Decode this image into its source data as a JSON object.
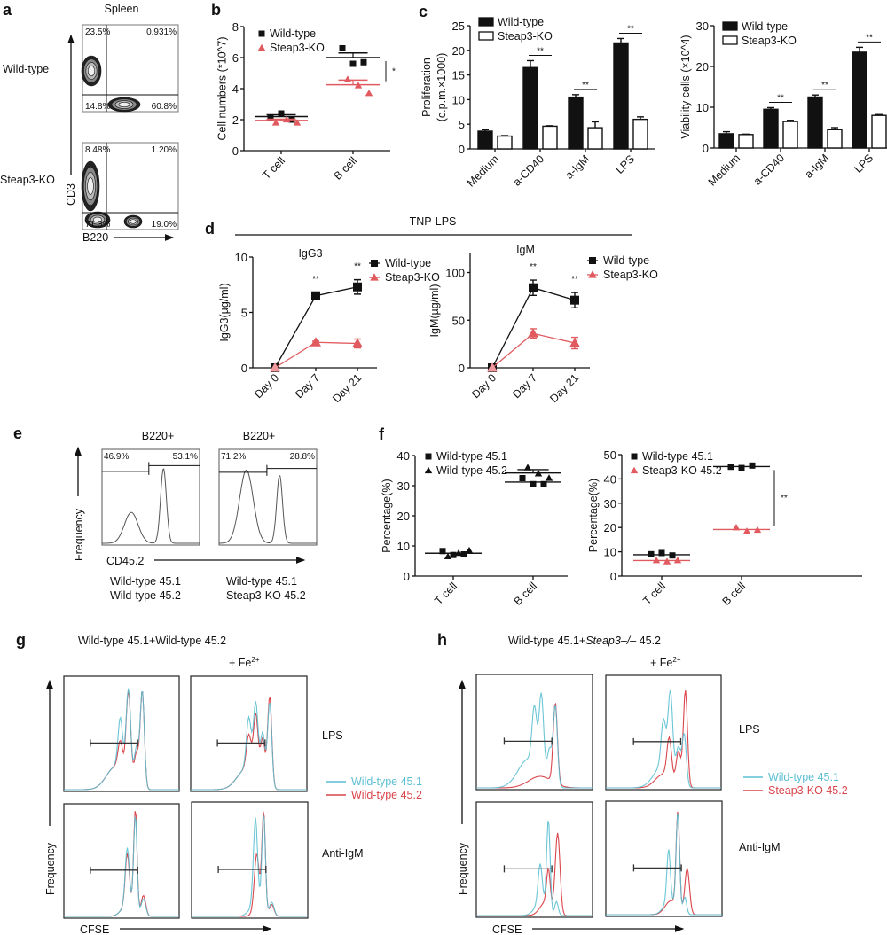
{
  "panels": {
    "a": {
      "label": "a",
      "title": "Spleen",
      "row_labels": [
        "Wild-type",
        "Steap3-KO"
      ],
      "y_axis": "CD3",
      "x_axis": "B220",
      "quadrants": [
        [
          "23.5%",
          "0.931%",
          "14.8%",
          "60.8%"
        ],
        [
          "8.48%",
          "1.20%",
          "71.3%",
          "19.0%"
        ]
      ]
    },
    "b": {
      "label": "b"
    },
    "c": {
      "label": "c"
    },
    "d": {
      "label": "d",
      "group_title": "TNP-LPS"
    },
    "e": {
      "label": "e",
      "titles": [
        "B220+",
        "B220+"
      ],
      "y_axis": "Frequency",
      "x_axis": "CD45.2",
      "gates": [
        [
          "46.9%",
          "53.1%"
        ],
        [
          "71.2%",
          "28.8%"
        ]
      ],
      "captions": [
        [
          "Wild-type 45.1",
          "Wild-type 45.2"
        ],
        [
          "Wild-type  45.1",
          "Steap3-KO 45.2"
        ]
      ]
    },
    "f": {
      "label": "f"
    },
    "g": {
      "label": "g",
      "title": "Wild-type 45.1+Wild-type 45.2",
      "fe_label": "+ Fe",
      "fe_sup": "2+",
      "rows": [
        "LPS",
        "Anti-IgM"
      ],
      "legend": [
        "Wild-type 45.1",
        "Wild-type 45.2"
      ],
      "y_axis": "Frequency",
      "x_axis": "CFSE"
    },
    "h": {
      "label": "h",
      "title_prefix": "Wild-type 45.1+",
      "title_italic": "Steap3–/–",
      "title_suffix": " 45.2",
      "fe_label": "+ Fe",
      "fe_sup": "2+",
      "rows": [
        "LPS",
        "Anti-IgM"
      ],
      "legend": [
        "Wild-type 45.1",
        "Steap3-KO 45.2"
      ],
      "y_axis": "Frequency",
      "x_axis": "CFSE"
    }
  },
  "colors": {
    "wild_type": "#111111",
    "steap3_ko": "#e05a5f",
    "hist_wt": "#5bbfd2",
    "hist_ko": "#d9464c",
    "hist_gray": "#555555"
  },
  "chart_data": [
    {
      "id": "b",
      "type": "scatter",
      "ylabel": "Cell numbers (*10^7)",
      "ylim": [
        0,
        8
      ],
      "yticks": [
        0,
        2,
        4,
        6,
        8
      ],
      "categories": [
        "T cell",
        "B cell"
      ],
      "legend_position": "top-left",
      "series": [
        {
          "name": "Wild-type",
          "marker": "square",
          "points": [
            [
              2.1,
              2.4,
              2.0
            ],
            [
              6.6,
              5.6,
              5.7
            ]
          ],
          "mean": [
            2.2,
            6.0
          ],
          "sem": [
            0.12,
            0.3
          ]
        },
        {
          "name": "Steap3-KO",
          "marker": "triangle",
          "points": [
            [
              1.8,
              2.0,
              1.8
            ],
            [
              4.6,
              4.2,
              3.7
            ]
          ],
          "mean": [
            1.95,
            4.25
          ],
          "sem": [
            0.08,
            0.3
          ]
        }
      ],
      "significance": [
        {
          "between": "B cell",
          "label": "*"
        }
      ]
    },
    {
      "id": "c1",
      "type": "bar",
      "ylabel": "Proliferation\n(c.p.m.×1000)",
      "ylabel_lines": [
        "Proliferation",
        "(c.p.m.×1000)"
      ],
      "ylim": [
        0,
        25
      ],
      "yticks": [
        0,
        5,
        10,
        15,
        20,
        25
      ],
      "categories": [
        "Medium",
        "a-CD40",
        "a-IgM",
        "LPS"
      ],
      "legend_position": "top-left",
      "series": [
        {
          "name": "Wild-type",
          "fill": "black",
          "values": [
            3.6,
            16.5,
            10.5,
            21.5
          ],
          "err": [
            0.3,
            1.4,
            0.5,
            0.9
          ]
        },
        {
          "name": "Steap3-KO",
          "fill": "white",
          "values": [
            2.6,
            4.6,
            4.3,
            6.0
          ],
          "err": [
            0.1,
            0.1,
            1.2,
            0.5
          ]
        }
      ],
      "significance": [
        {
          "category": "a-CD40",
          "label": "**"
        },
        {
          "category": "a-IgM",
          "label": "**"
        },
        {
          "category": "LPS",
          "label": "**"
        }
      ]
    },
    {
      "id": "c2",
      "type": "bar",
      "ylabel": "Viability cells (×10^4)",
      "ylabel_lines": [
        "Viability cells (×10^4)"
      ],
      "ylim": [
        0,
        30
      ],
      "yticks": [
        0,
        10,
        20,
        30
      ],
      "categories": [
        "Medium",
        "a-CD40",
        "a-IgM",
        "LPS"
      ],
      "legend_position": "top-left",
      "series": [
        {
          "name": "Wild-type",
          "fill": "black",
          "values": [
            3.5,
            9.5,
            12.5,
            23.5
          ],
          "err": [
            0.5,
            0.4,
            0.5,
            1.2
          ]
        },
        {
          "name": "Steap3-KO",
          "fill": "white",
          "values": [
            3.3,
            6.5,
            4.5,
            8.0
          ],
          "err": [
            0.1,
            0.3,
            0.5,
            0.2
          ]
        }
      ],
      "significance": [
        {
          "category": "a-CD40",
          "label": "**"
        },
        {
          "category": "a-IgM",
          "label": "**"
        },
        {
          "category": "LPS",
          "label": "**"
        }
      ]
    },
    {
      "id": "d1",
      "type": "line",
      "title": "IgG3",
      "ylabel": "IgG3(µg/ml)",
      "ylim": [
        0,
        10
      ],
      "yticks": [
        0,
        5,
        10
      ],
      "categories": [
        "Day 0",
        "Day 7",
        "Day 21"
      ],
      "legend_position": "right",
      "series": [
        {
          "name": "Wild-type",
          "marker": "square",
          "values": [
            0,
            6.5,
            7.3
          ],
          "err": [
            0,
            0.3,
            0.65
          ]
        },
        {
          "name": "Steap3-KO",
          "marker": "triangle",
          "values": [
            0,
            2.3,
            2.2
          ],
          "err": [
            0,
            0.1,
            0.4
          ]
        }
      ],
      "significance": [
        {
          "category": "Day 7",
          "label": "**"
        },
        {
          "category": "Day 21",
          "label": "**"
        }
      ]
    },
    {
      "id": "d2",
      "type": "line",
      "title": "IgM",
      "ylabel": "IgM(µg/ml)",
      "ylim": [
        0,
        120
      ],
      "yticks": [
        0,
        50,
        100
      ],
      "categories": [
        "Day 0",
        "Day 7",
        "Day 21"
      ],
      "legend_position": "right",
      "series": [
        {
          "name": "Wild-type",
          "marker": "square",
          "values": [
            0,
            84,
            71
          ],
          "err": [
            0,
            8,
            8
          ]
        },
        {
          "name": "Steap3-KO",
          "marker": "triangle",
          "values": [
            0,
            36,
            26
          ],
          "err": [
            0,
            5,
            6
          ]
        }
      ],
      "significance": [
        {
          "category": "Day 7",
          "label": "**"
        },
        {
          "category": "Day 21",
          "label": "**"
        }
      ]
    },
    {
      "id": "f1",
      "type": "scatter",
      "ylabel": "Percentage(%)",
      "ylim": [
        0,
        40
      ],
      "yticks": [
        0,
        10,
        20,
        30,
        40
      ],
      "categories": [
        "T cell",
        "B cell"
      ],
      "legend_position": "top-left",
      "series": [
        {
          "name": "Wild-type 45.1",
          "marker": "square",
          "points": [
            [
              8.3,
              7.0,
              7.2
            ],
            [
              32.5,
              30.5,
              30.5
            ]
          ],
          "mean": [
            7.6,
            31.2
          ],
          "sem": [
            0,
            0
          ]
        },
        {
          "name": "Wild-type 45.2",
          "marker": "triangle",
          "points": [
            [
              6.5,
              7.6,
              8.5
            ],
            [
              36.0,
              34.0,
              32.5
            ]
          ],
          "mean": [
            7.6,
            34.2
          ],
          "sem": [
            0,
            1.1
          ]
        }
      ]
    },
    {
      "id": "f2",
      "type": "scatter",
      "ylabel": "Percentage(%)",
      "ylim": [
        0,
        50
      ],
      "yticks": [
        0,
        10,
        20,
        30,
        40,
        50
      ],
      "categories": [
        "T cell",
        "B cell"
      ],
      "legend_position": "top-left",
      "series": [
        {
          "name": "Wild-type 45.1",
          "marker": "square",
          "points": [
            [
              9.0,
              9.5,
              8.5
            ],
            [
              45.0,
              44.5,
              45.5
            ]
          ],
          "mean": [
            8.8,
            45.1
          ],
          "sem": [
            0,
            0
          ]
        },
        {
          "name": "Steap3-KO 45.2",
          "marker": "triangle",
          "points": [
            [
              6.5,
              6.0,
              6.5
            ],
            [
              20.0,
              18.5,
              19.0
            ]
          ],
          "mean": [
            6.4,
            19.2
          ],
          "sem": [
            0,
            0
          ]
        }
      ],
      "significance": [
        {
          "between": "B cell",
          "label": "**"
        }
      ]
    }
  ]
}
